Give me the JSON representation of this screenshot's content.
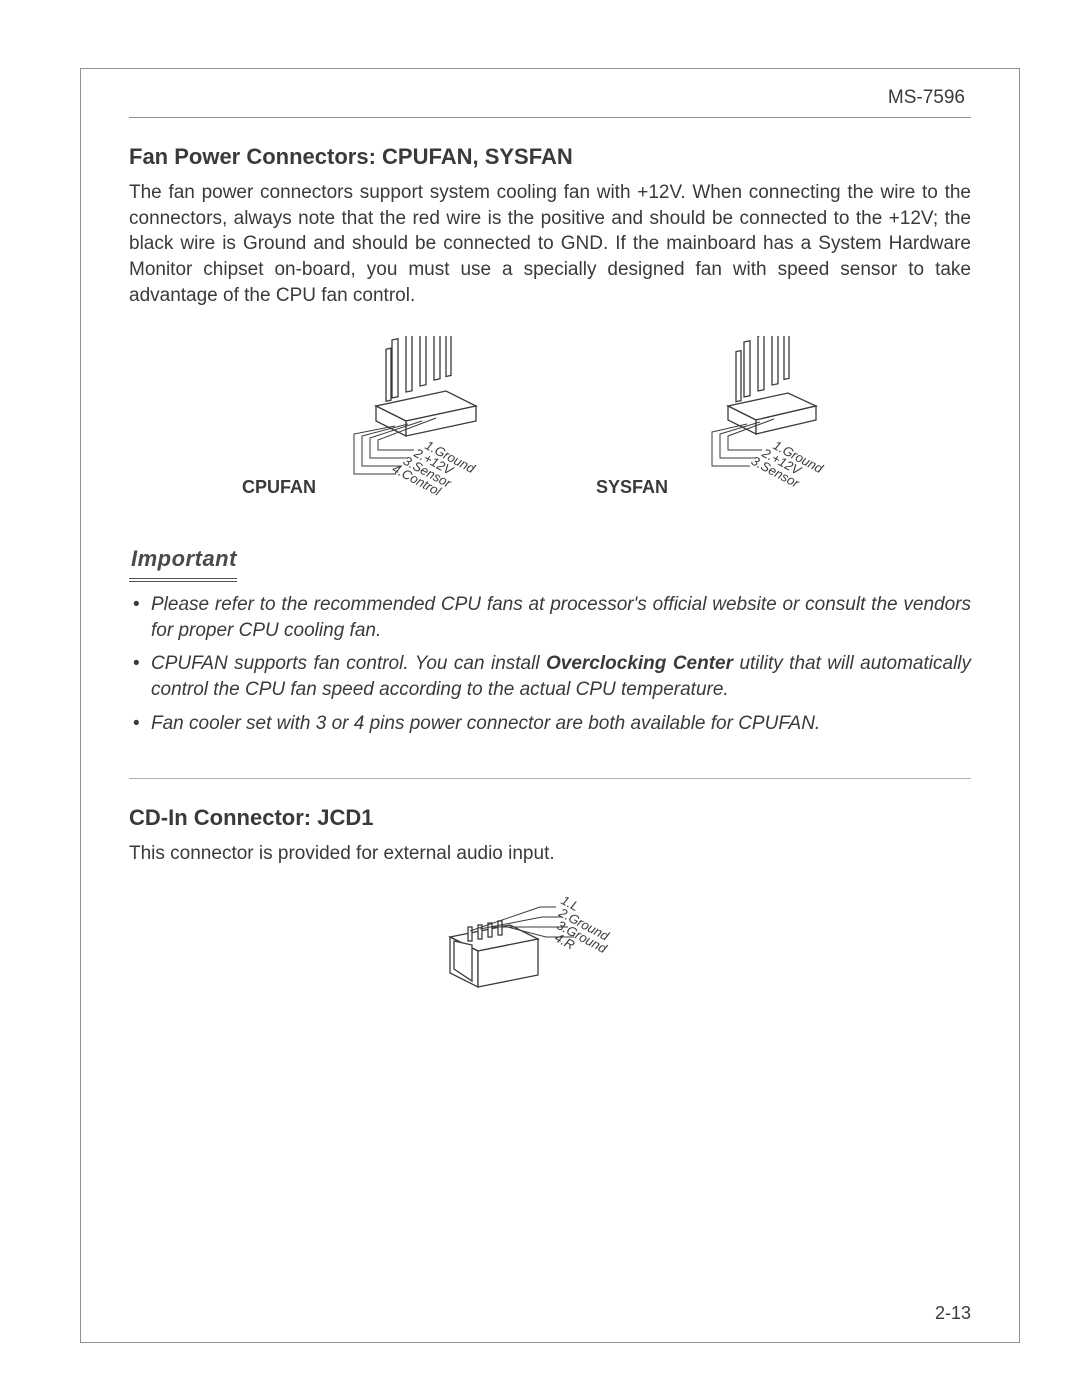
{
  "model": "MS-7596",
  "page_number": "2-13",
  "section_fan": {
    "title": "Fan Power Connectors: CPUFAN, SYSFAN",
    "body": "The fan power connectors support system cooling fan with +12V. When connecting the wire to the connectors, always note that the red wire is the positive and should be connected to the +12V; the black wire is Ground and should be connected to GND. If the mainboard has a System Hardware Monitor chipset on-board, you must use a specially designed fan with speed sensor to take advantage of the CPU fan control.",
    "cpufan_label": "CPUFAN",
    "sysfan_label": "SYSFAN",
    "cpufan_pins": [
      "1.Ground",
      "2.+12V",
      "3.Sensor",
      "4.Control"
    ],
    "sysfan_pins": [
      "1.Ground",
      "2.+12V",
      "3.Sensor"
    ]
  },
  "important": {
    "heading": "Important",
    "notes": [
      "Please refer to the recommended CPU fans at processor's official website or consult the vendors for proper CPU cooling fan.",
      "CPUFAN supports fan control. You can install Overclocking Center utility that will automatically control the CPU fan speed according to the actual CPU temperature.",
      "Fan cooler set with 3 or 4 pins power connector are both available for CPUFAN."
    ],
    "bold_term": "Overclocking Center"
  },
  "section_cd": {
    "title": "CD-In Connector: JCD1",
    "body": "This connector is provided for external audio input.",
    "pins": [
      "1.L",
      "2.Ground",
      "3.Ground",
      "4.R"
    ]
  },
  "colors": {
    "text": "#3a3a3a",
    "border": "#909090",
    "line": "#505050"
  }
}
